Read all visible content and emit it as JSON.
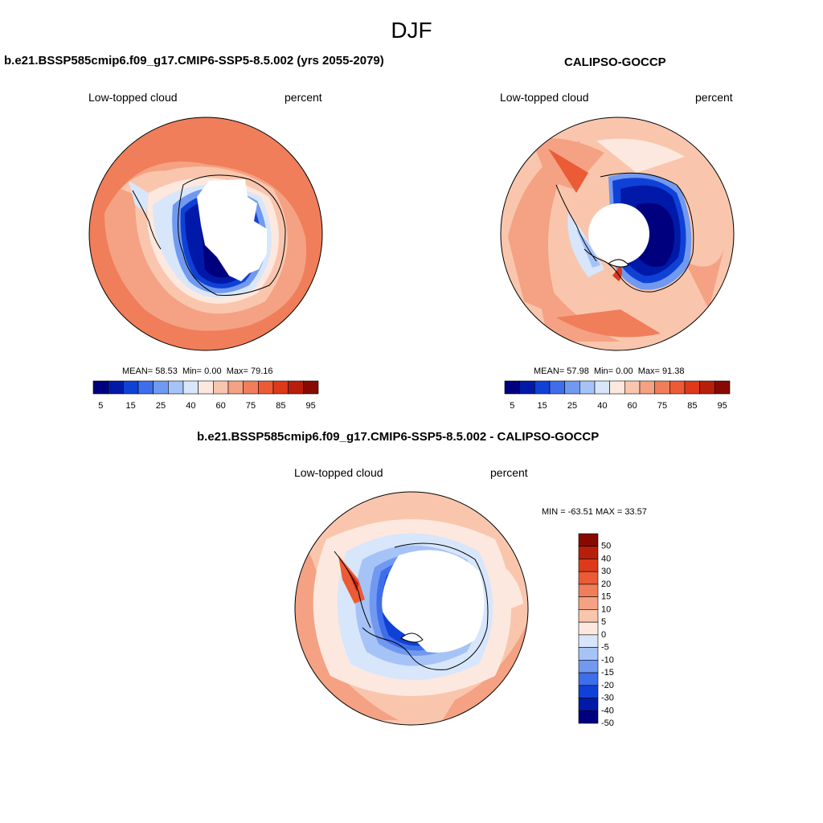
{
  "figure": {
    "season": "DJF"
  },
  "panels": {
    "model": {
      "title": "b.e21.BSSP585cmip6.f09_g17.CMIP6-SSP5-8.5.002 (yrs 2055-2079)",
      "variable": "Low-topped cloud",
      "units": "percent",
      "stats": {
        "mean_label": "MEAN=",
        "mean": "58.53",
        "min_label": "Min=",
        "min": "0.00",
        "max_label": "Max=",
        "max": "79.16"
      }
    },
    "obs": {
      "title": "CALIPSO-GOCCP",
      "variable": "Low-topped cloud",
      "units": "percent",
      "stats": {
        "mean_label": "MEAN=",
        "mean": "57.98",
        "min_label": "Min=",
        "min": "0.00",
        "max_label": "Max=",
        "max": "91.38"
      }
    },
    "diff": {
      "title": "b.e21.BSSP585cmip6.f09_g17.CMIP6-SSP5-8.5.002 - CALIPSO-GOCCP",
      "variable": "Low-topped cloud",
      "units": "percent",
      "minmax": "MIN = -63.51 MAX =  33.57"
    }
  },
  "colorbars": {
    "abs": {
      "colors": [
        "#00007f",
        "#0019a8",
        "#0f41d6",
        "#3f6eea",
        "#7199f0",
        "#a6c3f7",
        "#d7e6fb",
        "#fde8df",
        "#f9c6ad",
        "#f4a283",
        "#f07e5a",
        "#ea5b36",
        "#dc3a1a",
        "#b81f0a",
        "#870a02"
      ],
      "labels": [
        "5",
        "15",
        "25",
        "40",
        "60",
        "75",
        "85",
        "95"
      ]
    },
    "diff": {
      "colors": [
        "#00007f",
        "#0019a8",
        "#0f41d6",
        "#3f6eea",
        "#7199f0",
        "#a6c3f7",
        "#d7e6fb",
        "#fde8df",
        "#f9c6ad",
        "#f4a283",
        "#f07e5a",
        "#ea5b36",
        "#dc3a1a",
        "#b81f0a",
        "#870a02"
      ],
      "labels": [
        "-50",
        "-40",
        "-30",
        "-20",
        "-15",
        "-10",
        "-5",
        "0",
        "5",
        "10",
        "15",
        "20",
        "30",
        "40",
        "50"
      ]
    }
  }
}
